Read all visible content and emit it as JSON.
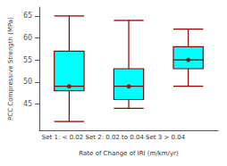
{
  "chart_data": {
    "type": "box",
    "ylabel": "PCC Compressive Strength (MPa)",
    "xlabel": "Rate of Change of IRI (m/km/yr)",
    "annotations": [
      "Set 1: < 0.02 Set 2: 0.02 to 0.04 Set 3 > 0.04"
    ],
    "categories": [
      null,
      null,
      null
    ],
    "values": [
      [
        41,
        48,
        49,
        57,
        65
      ],
      [
        44,
        46,
        49,
        53,
        64
      ],
      [
        49,
        53,
        55,
        58,
        62
      ]
    ],
    "color": "#00FFFF",
    "marker": "circle",
    "ylim": [
      39,
      67
    ],
    "yticks": [
      45,
      50,
      55,
      60,
      65
    ],
    "grid": false,
    "tick_labels": "y"
  }
}
